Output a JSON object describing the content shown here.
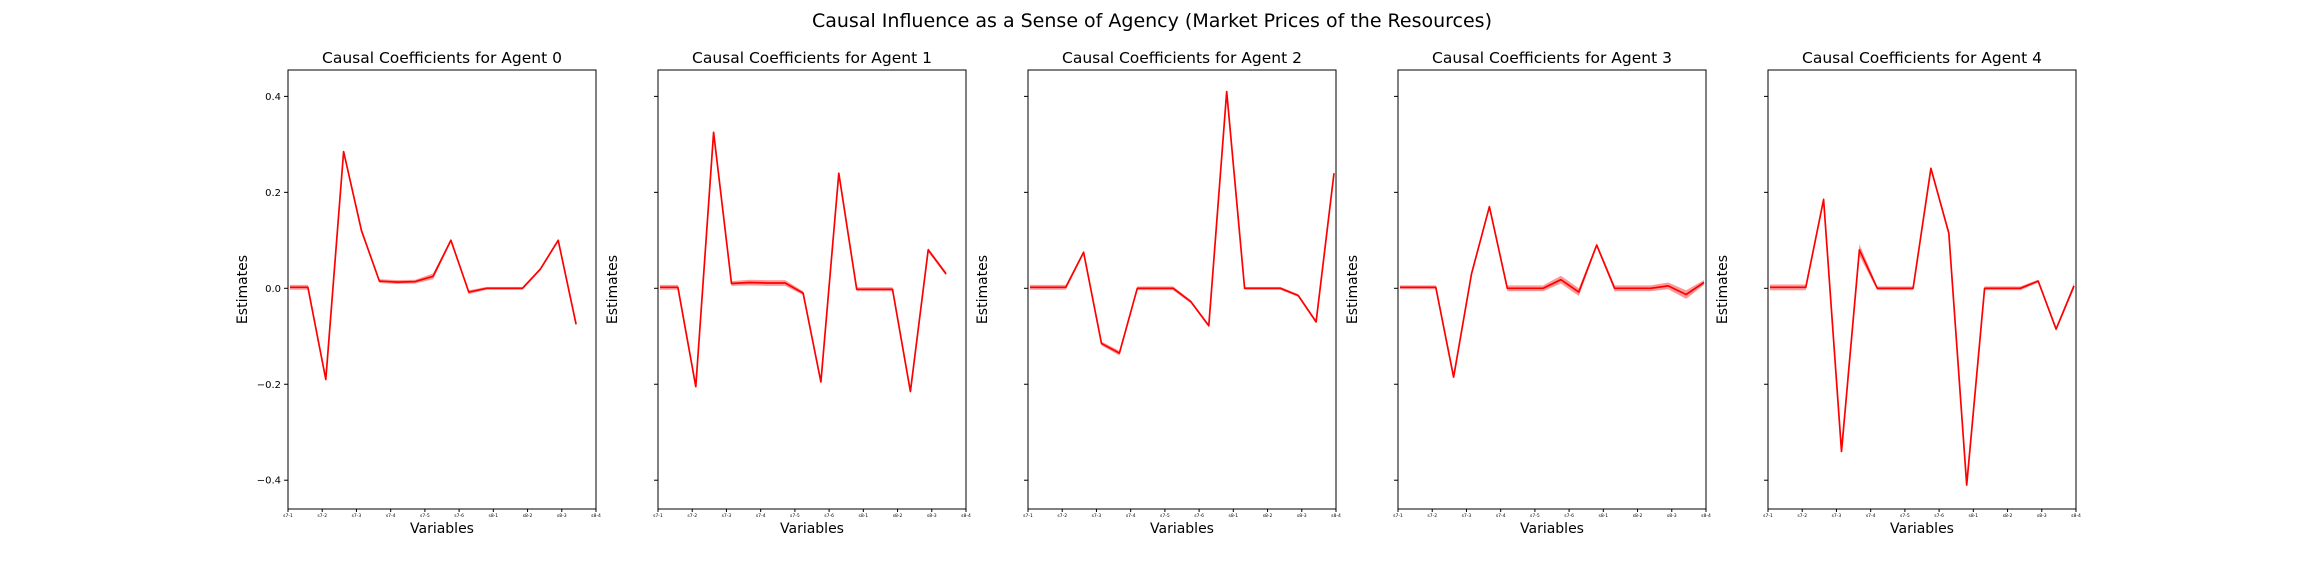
{
  "figure": {
    "title": "Causal Influence as a Sense of Agency (Market Prices of the Resources)"
  },
  "colors": {
    "line": "#ff0000",
    "band": "#ff8080",
    "axes": "#000000"
  },
  "shared_axes": {
    "ylabel": "Estimates",
    "xlabel": "Variables",
    "ylim": [
      -0.46,
      0.455
    ],
    "yticks": [
      -0.4,
      -0.2,
      0.0,
      0.2,
      0.4
    ],
    "ytick_labels": [
      "−0.4",
      "−0.2",
      "0.0",
      "0.2",
      "0.4"
    ],
    "xticks": [
      "s7-1",
      "s7-2",
      "s7-3",
      "s7-4",
      "s7-5",
      "s7-6",
      "s8-1",
      "s8-2",
      "s8-3",
      "s8-4"
    ],
    "x_count": 18,
    "sharey": true
  },
  "chart_data": [
    {
      "type": "line",
      "title": "Causal Coefficients for Agent 0",
      "xlabel": "Variables",
      "ylabel": "Estimates",
      "ylim": [
        -0.46,
        0.455
      ],
      "x": [
        0,
        1,
        2,
        3,
        4,
        5,
        6,
        7,
        8,
        9,
        10,
        11,
        12,
        13,
        14,
        15,
        16,
        17
      ],
      "values": [
        0.002,
        0.002,
        -0.19,
        0.285,
        0.12,
        0.015,
        0.013,
        0.014,
        0.025,
        0.1,
        -0.008,
        0.0,
        0.0,
        0.0,
        0.04,
        0.1,
        -0.075,
        null
      ],
      "band": [
        0.005,
        0.005,
        0.003,
        0.003,
        0.003,
        0.004,
        0.004,
        0.004,
        0.006,
        0.003,
        0.004,
        0.003,
        0.003,
        0.003,
        0.003,
        0.003,
        0.003,
        null
      ]
    },
    {
      "type": "line",
      "title": "Causal Coefficients for Agent 1",
      "xlabel": "Variables",
      "ylabel": "Estimates",
      "ylim": [
        -0.46,
        0.455
      ],
      "x": [
        0,
        1,
        2,
        3,
        4,
        5,
        6,
        7,
        8,
        9,
        10,
        11,
        12,
        13,
        14,
        15,
        16,
        17
      ],
      "values": [
        0.002,
        0.002,
        -0.205,
        0.325,
        0.01,
        0.012,
        0.011,
        0.011,
        -0.01,
        -0.195,
        0.24,
        -0.002,
        -0.002,
        -0.002,
        -0.215,
        0.08,
        0.03,
        null
      ],
      "band": [
        0.005,
        0.005,
        0.003,
        0.003,
        0.005,
        0.006,
        0.006,
        0.006,
        0.004,
        0.003,
        0.003,
        0.004,
        0.004,
        0.004,
        0.003,
        0.004,
        0.004,
        null
      ]
    },
    {
      "type": "line",
      "title": "Causal Coefficients for Agent 2",
      "xlabel": "Variables",
      "ylabel": "Estimates",
      "ylim": [
        -0.46,
        0.455
      ],
      "x": [
        0,
        1,
        2,
        3,
        4,
        5,
        6,
        7,
        8,
        9,
        10,
        11,
        12,
        13,
        14,
        15,
        16,
        17
      ],
      "values": [
        0.002,
        0.002,
        0.002,
        0.075,
        -0.115,
        -0.135,
        0.0,
        0.0,
        0.0,
        -0.028,
        -0.078,
        0.41,
        0.0,
        0.0,
        0.0,
        -0.015,
        -0.07,
        0.24
      ],
      "band": [
        0.005,
        0.005,
        0.005,
        0.003,
        0.004,
        0.005,
        0.004,
        0.004,
        0.004,
        0.003,
        0.003,
        0.003,
        0.003,
        0.003,
        0.003,
        0.003,
        0.003,
        0.003
      ]
    },
    {
      "type": "line",
      "title": "Causal Coefficients for Agent 3",
      "xlabel": "Variables",
      "ylabel": "Estimates",
      "ylim": [
        -0.46,
        0.455
      ],
      "x": [
        0,
        1,
        2,
        3,
        4,
        5,
        6,
        7,
        8,
        9,
        10,
        11,
        12,
        13,
        14,
        15,
        16,
        17
      ],
      "values": [
        0.002,
        0.002,
        0.002,
        -0.185,
        0.03,
        0.17,
        0.0,
        0.0,
        0.0,
        0.018,
        -0.008,
        0.09,
        0.0,
        0.0,
        0.0,
        0.005,
        -0.013,
        0.012
      ],
      "band": [
        0.004,
        0.004,
        0.004,
        0.003,
        0.003,
        0.003,
        0.006,
        0.006,
        0.006,
        0.008,
        0.008,
        0.004,
        0.006,
        0.006,
        0.006,
        0.007,
        0.009,
        0.005
      ]
    },
    {
      "type": "line",
      "title": "Causal Coefficients for Agent 4",
      "xlabel": "Variables",
      "ylabel": "Estimates",
      "ylim": [
        -0.46,
        0.455
      ],
      "x": [
        0,
        1,
        2,
        3,
        4,
        5,
        6,
        7,
        8,
        9,
        10,
        11,
        12,
        13,
        14,
        15,
        16,
        17
      ],
      "values": [
        0.002,
        0.002,
        0.002,
        0.185,
        -0.34,
        0.08,
        0.0,
        0.0,
        0.0,
        0.25,
        0.115,
        -0.41,
        0.0,
        0.0,
        0.0,
        0.015,
        -0.085,
        0.005
      ],
      "band": [
        0.006,
        0.006,
        0.006,
        0.005,
        0.003,
        0.012,
        0.004,
        0.004,
        0.004,
        0.003,
        0.003,
        0.006,
        0.004,
        0.004,
        0.004,
        0.003,
        0.004,
        0.006
      ]
    }
  ]
}
